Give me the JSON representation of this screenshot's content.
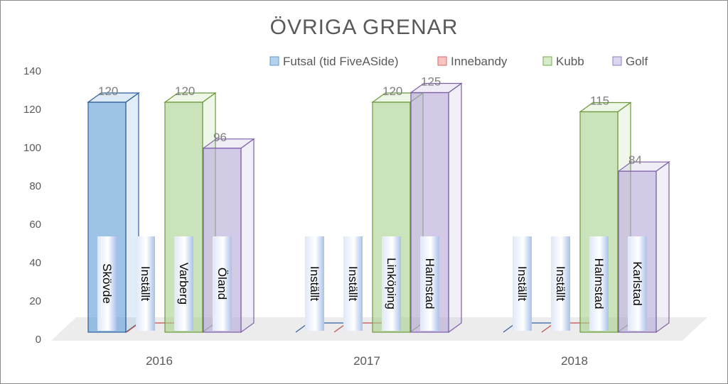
{
  "chart_data": {
    "type": "bar",
    "title": "ÖVRIGA GRENAR",
    "categories": [
      "2016",
      "2017",
      "2018"
    ],
    "ylim": [
      0,
      140
    ],
    "yticks": [
      "0",
      "20",
      "40",
      "60",
      "80",
      "100",
      "120",
      "140"
    ],
    "legend_position": "top-right",
    "grid": false,
    "three_d": true,
    "series": [
      {
        "name": "Futsal (tid FiveASide)",
        "color": "#5B9BD5",
        "values": [
          120,
          0,
          0
        ],
        "data_labels": [
          "120",
          "",
          ""
        ],
        "venues": [
          "Skövde",
          "Inställt",
          "Inställt"
        ]
      },
      {
        "name": "Innebandy",
        "color": "#ED7D7D",
        "values": [
          0,
          0,
          0
        ],
        "data_labels": [
          "",
          "",
          ""
        ],
        "venues": [
          "Inställt",
          "Inställt",
          "Inställt"
        ]
      },
      {
        "name": "Kubb",
        "color": "#A9D18E",
        "values": [
          120,
          120,
          115
        ],
        "data_labels": [
          "120",
          "120",
          "115"
        ],
        "venues": [
          "Varberg",
          "Linköping",
          "Halmstad"
        ]
      },
      {
        "name": "Golf",
        "color": "#B4A7D6",
        "values": [
          96,
          125,
          84
        ],
        "data_labels": [
          "96",
          "125",
          "84"
        ],
        "venues": [
          "Öland",
          "Halmstad",
          "Karlstad"
        ]
      }
    ]
  }
}
